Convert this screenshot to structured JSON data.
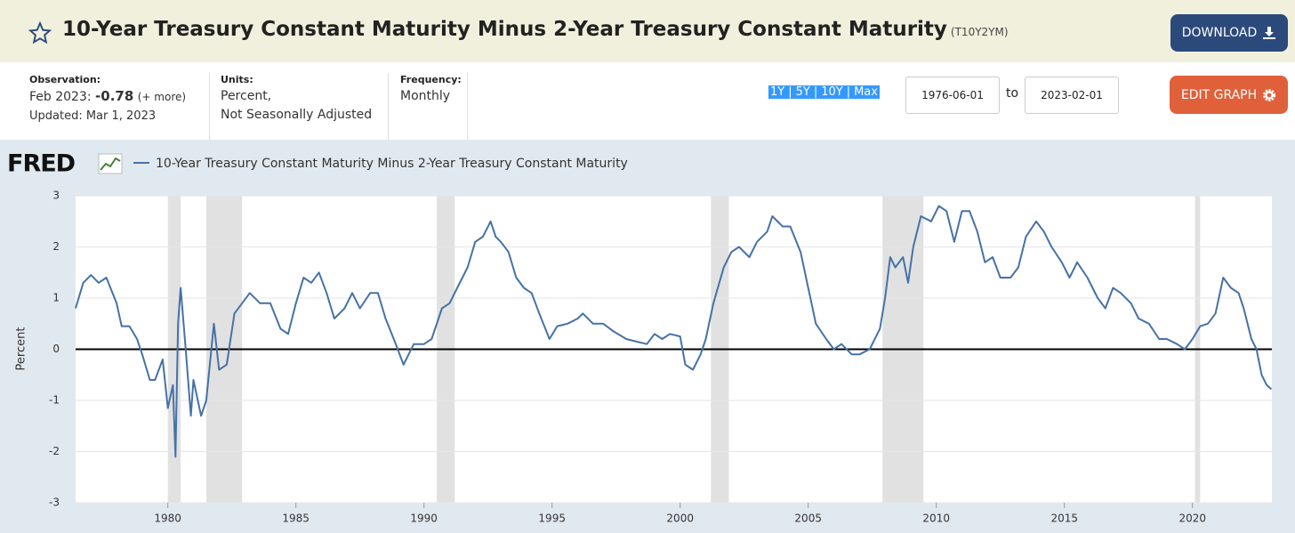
{
  "header": {
    "title": "10-Year Treasury Constant Maturity Minus 2-Year Treasury Constant Maturity",
    "series_id": "(T10Y2YM)",
    "download": "DOWNLOAD"
  },
  "info": {
    "observation_label": "Observation:",
    "observation_date": "Feb 2023:",
    "observation_value": "-0.78",
    "more": "(+ more)",
    "updated": "Updated: Mar 1, 2023",
    "units_label": "Units:",
    "units_line1": "Percent,",
    "units_line2": "Not Seasonally Adjusted",
    "frequency_label": "Frequency:",
    "frequency": "Monthly"
  },
  "controls": {
    "ranges": [
      "1Y",
      "5Y",
      "10Y",
      "Max"
    ],
    "separator": "|",
    "start_date": "1976-06-01",
    "to": "to",
    "end_date": "2023-02-01",
    "edit": "EDIT GRAPH"
  },
  "chart_data": {
    "type": "line",
    "logo": "FRED",
    "y_label": "Percent",
    "xlim": [
      1976.4,
      2023.1
    ],
    "xticks": [
      1980,
      1985,
      1990,
      1995,
      2000,
      2005,
      2010,
      2015,
      2020
    ],
    "ylim": [
      -3,
      3
    ],
    "yticks": [
      -3,
      -2,
      -1,
      0,
      1,
      2,
      3
    ],
    "grid": true,
    "reference_line": 0,
    "recessions": [
      [
        1980.0,
        1980.5
      ],
      [
        1981.5,
        1982.9
      ],
      [
        1990.5,
        1991.2
      ],
      [
        2001.2,
        2001.9
      ],
      [
        2007.9,
        2009.5
      ],
      [
        2020.1,
        2020.3
      ]
    ],
    "series": [
      {
        "name": "10-Year Treasury Constant Maturity Minus 2-Year Treasury Constant Maturity",
        "color": "#4572a7",
        "x": [
          1976.4,
          1976.7,
          1977.0,
          1977.3,
          1977.6,
          1978.0,
          1978.2,
          1978.5,
          1978.8,
          1979.0,
          1979.3,
          1979.5,
          1979.8,
          1980.0,
          1980.2,
          1980.3,
          1980.4,
          1980.5,
          1980.7,
          1980.9,
          1981.0,
          1981.3,
          1981.5,
          1981.8,
          1982.0,
          1982.3,
          1982.6,
          1982.9,
          1983.2,
          1983.6,
          1984.0,
          1984.4,
          1984.7,
          1985.0,
          1985.3,
          1985.6,
          1985.9,
          1986.2,
          1986.5,
          1986.9,
          1987.2,
          1987.5,
          1987.9,
          1988.2,
          1988.5,
          1988.9,
          1989.2,
          1989.6,
          1990.0,
          1990.3,
          1990.7,
          1991.0,
          1991.3,
          1991.7,
          1992.0,
          1992.3,
          1992.6,
          1992.8,
          1993.0,
          1993.3,
          1993.6,
          1993.9,
          1994.2,
          1994.5,
          1994.9,
          1995.2,
          1995.6,
          1996.0,
          1996.2,
          1996.6,
          1997.0,
          1997.4,
          1997.9,
          1998.3,
          1998.7,
          1999.0,
          1999.3,
          1999.6,
          2000.0,
          2000.2,
          2000.5,
          2000.8,
          2001.0,
          2001.3,
          2001.7,
          2002.0,
          2002.3,
          2002.7,
          2003.0,
          2003.4,
          2003.6,
          2004.0,
          2004.3,
          2004.7,
          2005.0,
          2005.3,
          2005.7,
          2006.0,
          2006.3,
          2006.7,
          2007.0,
          2007.4,
          2007.8,
          2008.0,
          2008.2,
          2008.4,
          2008.7,
          2008.9,
          2009.1,
          2009.4,
          2009.8,
          2010.1,
          2010.4,
          2010.7,
          2011.0,
          2011.3,
          2011.6,
          2011.9,
          2012.2,
          2012.5,
          2012.9,
          2013.2,
          2013.5,
          2013.9,
          2014.2,
          2014.5,
          2014.9,
          2015.2,
          2015.5,
          2015.9,
          2016.3,
          2016.6,
          2016.9,
          2017.2,
          2017.6,
          2017.9,
          2018.3,
          2018.7,
          2019.0,
          2019.4,
          2019.7,
          2020.0,
          2020.3,
          2020.6,
          2020.9,
          2021.2,
          2021.5,
          2021.8,
          2022.0,
          2022.3,
          2022.5,
          2022.7,
          2022.9,
          2023.08
        ],
        "values": [
          0.8,
          1.3,
          1.45,
          1.3,
          1.4,
          0.9,
          0.45,
          0.45,
          0.2,
          -0.1,
          -0.6,
          -0.6,
          -0.2,
          -1.15,
          -0.7,
          -2.1,
          0.5,
          1.2,
          0.0,
          -1.3,
          -0.6,
          -1.3,
          -1.0,
          0.5,
          -0.4,
          -0.3,
          0.7,
          0.9,
          1.1,
          0.9,
          0.9,
          0.4,
          0.3,
          0.9,
          1.4,
          1.3,
          1.5,
          1.1,
          0.6,
          0.8,
          1.1,
          0.8,
          1.1,
          1.1,
          0.6,
          0.1,
          -0.3,
          0.1,
          0.1,
          0.2,
          0.8,
          0.9,
          1.2,
          1.6,
          2.1,
          2.2,
          2.5,
          2.2,
          2.1,
          1.9,
          1.4,
          1.2,
          1.1,
          0.7,
          0.2,
          0.45,
          0.5,
          0.6,
          0.7,
          0.5,
          0.5,
          0.35,
          0.2,
          0.15,
          0.1,
          0.3,
          0.2,
          0.3,
          0.25,
          -0.3,
          -0.4,
          -0.1,
          0.2,
          0.9,
          1.6,
          1.9,
          2.0,
          1.8,
          2.1,
          2.3,
          2.6,
          2.4,
          2.4,
          1.9,
          1.2,
          0.5,
          0.2,
          0.0,
          0.1,
          -0.1,
          -0.1,
          0.0,
          0.4,
          1.0,
          1.8,
          1.6,
          1.8,
          1.3,
          2.0,
          2.6,
          2.5,
          2.8,
          2.7,
          2.1,
          2.7,
          2.7,
          2.3,
          1.7,
          1.8,
          1.4,
          1.4,
          1.6,
          2.2,
          2.5,
          2.3,
          2.0,
          1.7,
          1.4,
          1.7,
          1.4,
          1.0,
          0.8,
          1.2,
          1.1,
          0.9,
          0.6,
          0.5,
          0.2,
          0.2,
          0.1,
          0.0,
          0.2,
          0.45,
          0.5,
          0.7,
          1.4,
          1.2,
          1.1,
          0.8,
          0.2,
          0.0,
          -0.5,
          -0.7,
          -0.78
        ]
      }
    ]
  }
}
